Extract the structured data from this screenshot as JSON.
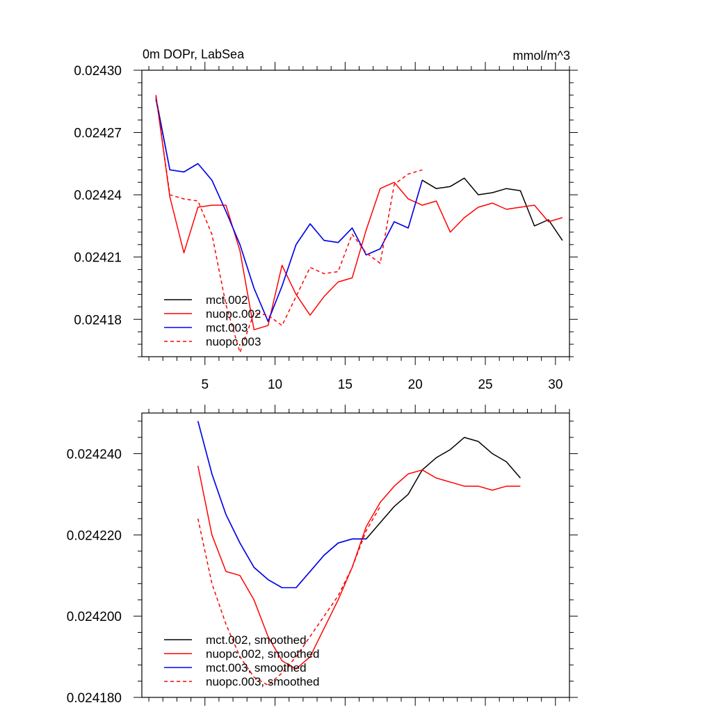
{
  "chart_data": [
    {
      "type": "line",
      "title_left": "0m DOPr, LabSea",
      "title_right": "mmol/m^3",
      "xlim": [
        0.5,
        31
      ],
      "ylim": [
        0.024162,
        0.0243
      ],
      "x_ticks": [
        5,
        10,
        15,
        20,
        25,
        30
      ],
      "x_tick_labels": [
        "5",
        "10",
        "15",
        "20",
        "25",
        "30"
      ],
      "y_ticks": [
        0.02418,
        0.02421,
        0.02424,
        0.02427,
        0.0243
      ],
      "y_tick_labels": [
        "0.02418",
        "0.02421",
        "0.02424",
        "0.02427",
        "0.02430"
      ],
      "grid": false,
      "legend_position": "bottom-left",
      "series": [
        {
          "name": "mct.002",
          "color": "#000000",
          "dash": "solid",
          "x": [
            1.5,
            2.5,
            3.5,
            4.5,
            5.5,
            6.5,
            7.5,
            8.5,
            9.5,
            10.5,
            11.5,
            12.5,
            13.5,
            14.5,
            15.5,
            16.5,
            17.5,
            18.5,
            19.5,
            20.5,
            21.5,
            22.5,
            23.5,
            24.5,
            25.5,
            26.5,
            27.5,
            28.5,
            29.5,
            30.5
          ],
          "y": [
            0.024287,
            0.024252,
            0.024251,
            0.024255,
            0.024247,
            0.024232,
            0.024216,
            0.024195,
            0.024179,
            0.024196,
            0.024216,
            0.024226,
            0.024218,
            0.024217,
            0.024224,
            0.024211,
            0.024214,
            0.024227,
            0.024224,
            0.024247,
            0.024243,
            0.024244,
            0.024248,
            0.02424,
            0.024241,
            0.024243,
            0.024242,
            0.024225,
            0.024228,
            0.024218
          ]
        },
        {
          "name": "nuopc.002",
          "color": "#ff0000",
          "dash": "solid",
          "x": [
            1.5,
            2.5,
            3.5,
            4.5,
            5.5,
            6.5,
            7.5,
            8.5,
            9.5,
            10.5,
            11.5,
            12.5,
            13.5,
            14.5,
            15.5,
            16.5,
            17.5,
            18.5,
            19.5,
            20.5,
            21.5,
            22.5,
            23.5,
            24.5,
            25.5,
            26.5,
            27.5,
            28.5,
            29.5,
            30.5
          ],
          "y": [
            0.024288,
            0.024239,
            0.024212,
            0.024234,
            0.024235,
            0.024235,
            0.024213,
            0.024175,
            0.024177,
            0.024206,
            0.024192,
            0.024182,
            0.024191,
            0.024198,
            0.0242,
            0.024223,
            0.024243,
            0.024246,
            0.024238,
            0.024235,
            0.024237,
            0.024222,
            0.024229,
            0.024234,
            0.024236,
            0.024233,
            0.024234,
            0.024235,
            0.024227,
            0.024229
          ]
        },
        {
          "name": "mct.003",
          "color": "#0000ff",
          "dash": "solid",
          "x": [
            1.5,
            2.5,
            3.5,
            4.5,
            5.5,
            6.5,
            7.5,
            8.5,
            9.5,
            10.5,
            11.5,
            12.5,
            13.5,
            14.5,
            15.5,
            16.5,
            17.5,
            18.5,
            19.5,
            20.5
          ],
          "y": [
            0.024286,
            0.024252,
            0.024251,
            0.024255,
            0.024247,
            0.024232,
            0.024216,
            0.024195,
            0.024179,
            0.024196,
            0.024216,
            0.024226,
            0.024218,
            0.024217,
            0.024224,
            0.024211,
            0.024214,
            0.024227,
            0.024224,
            0.024247
          ]
        },
        {
          "name": "nuopc.003",
          "color": "#ff0000",
          "dash": "dashed",
          "x": [
            1.5,
            2.5,
            3.5,
            4.5,
            5.5,
            6.5,
            7.5,
            8.5,
            9.5,
            10.5,
            11.5,
            12.5,
            13.5,
            14.5,
            15.5,
            16.5,
            17.5,
            18.5,
            19.5,
            20.5
          ],
          "y": [
            0.024288,
            0.02424,
            0.024238,
            0.024237,
            0.024221,
            0.024187,
            0.024164,
            0.024183,
            0.024182,
            0.024177,
            0.024191,
            0.024205,
            0.024202,
            0.024203,
            0.024221,
            0.024212,
            0.024207,
            0.024245,
            0.02425,
            0.024252
          ]
        }
      ]
    },
    {
      "type": "line",
      "xlim": [
        0.5,
        31
      ],
      "ylim": [
        0.02418,
        0.02425
      ],
      "x_ticks": [
        5,
        10,
        15,
        20,
        25,
        30
      ],
      "y_ticks": [
        0.02418,
        0.0242,
        0.02422,
        0.02424
      ],
      "y_tick_labels": [
        "0.024180",
        "0.024200",
        "0.024220",
        "0.024240"
      ],
      "grid": false,
      "legend_position": "bottom-left",
      "series": [
        {
          "name": "mct.002, smoothed",
          "color": "#000000",
          "dash": "solid",
          "x": [
            4.5,
            5.5,
            6.5,
            7.5,
            8.5,
            9.5,
            10.5,
            11.5,
            12.5,
            13.5,
            14.5,
            15.5,
            16.5,
            17.5,
            18.5,
            19.5,
            20.5,
            21.5,
            22.5,
            23.5,
            24.5,
            25.5,
            26.5,
            27.5
          ],
          "y": [
            0.024248,
            0.024235,
            0.024225,
            0.024218,
            0.024212,
            0.024209,
            0.024207,
            0.024207,
            0.024211,
            0.024215,
            0.024218,
            0.024219,
            0.024219,
            0.024223,
            0.024227,
            0.02423,
            0.024236,
            0.024239,
            0.024241,
            0.024244,
            0.024243,
            0.02424,
            0.024238,
            0.024234
          ]
        },
        {
          "name": "nuopc.002, smoothed",
          "color": "#ff0000",
          "dash": "solid",
          "x": [
            4.5,
            5.5,
            6.5,
            7.5,
            8.5,
            9.5,
            10.5,
            11.5,
            12.5,
            13.5,
            14.5,
            15.5,
            16.5,
            17.5,
            18.5,
            19.5,
            20.5,
            21.5,
            22.5,
            23.5,
            24.5,
            25.5,
            26.5,
            27.5
          ],
          "y": [
            0.024237,
            0.02422,
            0.024211,
            0.02421,
            0.024204,
            0.024195,
            0.024189,
            0.024187,
            0.02419,
            0.024197,
            0.024204,
            0.024212,
            0.024222,
            0.024228,
            0.024232,
            0.024235,
            0.024236,
            0.024234,
            0.024233,
            0.024232,
            0.024232,
            0.024231,
            0.024232,
            0.024232
          ]
        },
        {
          "name": "mct.003, smoothed",
          "color": "#0000ff",
          "dash": "solid",
          "x": [
            4.5,
            5.5,
            6.5,
            7.5,
            8.5,
            9.5,
            10.5,
            11.5,
            12.5,
            13.5,
            14.5,
            15.5,
            16.5
          ],
          "y": [
            0.024248,
            0.024235,
            0.024225,
            0.024218,
            0.024212,
            0.024209,
            0.024207,
            0.024207,
            0.024211,
            0.024215,
            0.024218,
            0.024219,
            0.024219
          ]
        },
        {
          "name": "nuopc.003, smoothed",
          "color": "#ff0000",
          "dash": "dashed",
          "x": [
            4.5,
            5.5,
            6.5,
            7.5,
            8.5,
            9.5,
            10.5,
            11.5,
            12.5,
            13.5,
            14.5,
            15.5,
            16.5,
            17.5
          ],
          "y": [
            0.024224,
            0.024208,
            0.024198,
            0.02419,
            0.024185,
            0.024183,
            0.024186,
            0.02419,
            0.024195,
            0.0242,
            0.024205,
            0.024212,
            0.024221,
            0.024227
          ]
        }
      ]
    }
  ]
}
